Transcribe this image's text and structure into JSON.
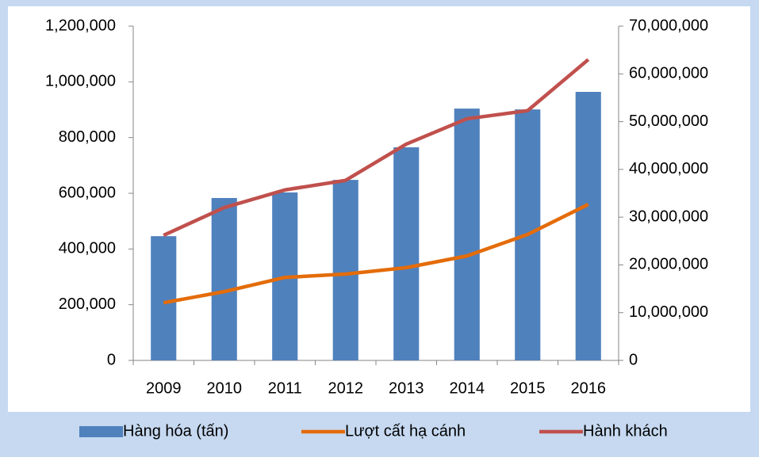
{
  "chart_data": {
    "type": "bar",
    "categories": [
      "2009",
      "2010",
      "2011",
      "2012",
      "2013",
      "2014",
      "2015",
      "2016"
    ],
    "series": [
      {
        "name": "Hàng hóa (tấn)",
        "type": "bar",
        "color": "#4f81bd",
        "values": [
          446000,
          583000,
          603000,
          648000,
          765000,
          904000,
          901000,
          964000
        ]
      },
      {
        "name": "Lượt cất hạ cánh",
        "type": "line",
        "color": "#e46c0a",
        "values": [
          207000,
          247000,
          298000,
          310000,
          333000,
          375000,
          452000,
          560000
        ]
      },
      {
        "name": "Hành khách",
        "type": "line",
        "color": "#c0504d",
        "axis": "y2",
        "values": [
          26200000,
          32000000,
          35700000,
          37700000,
          45300000,
          50600000,
          52300000,
          63000000
        ]
      }
    ],
    "ylim": [
      0,
      1200000
    ],
    "yticks": [
      0,
      {
        "value": 200000,
        "label": "200,000"
      },
      {
        "value": 400000,
        "label": "400,000"
      },
      {
        "value": 600000,
        "label": "600,000"
      },
      {
        "value": 800000,
        "label": "800,000"
      },
      {
        "value": 1000000,
        "label": "1,000,000"
      },
      {
        "value": 1200000,
        "label": "1,200,000"
      }
    ],
    "y2lim": [
      0,
      70000000
    ],
    "y2ticks": [
      0,
      {
        "value": 10000000,
        "label": "10,000,000"
      },
      {
        "value": 20000000,
        "label": "20,000,000"
      },
      {
        "value": 30000000,
        "label": "30,000,000"
      },
      {
        "value": 40000000,
        "label": "40,000,000"
      },
      {
        "value": 50000000,
        "label": "50,000,000"
      },
      {
        "value": 60000000,
        "label": "60,000,000"
      },
      {
        "value": 70000000,
        "label": "70,000,000"
      }
    ],
    "legend": "bottom"
  }
}
